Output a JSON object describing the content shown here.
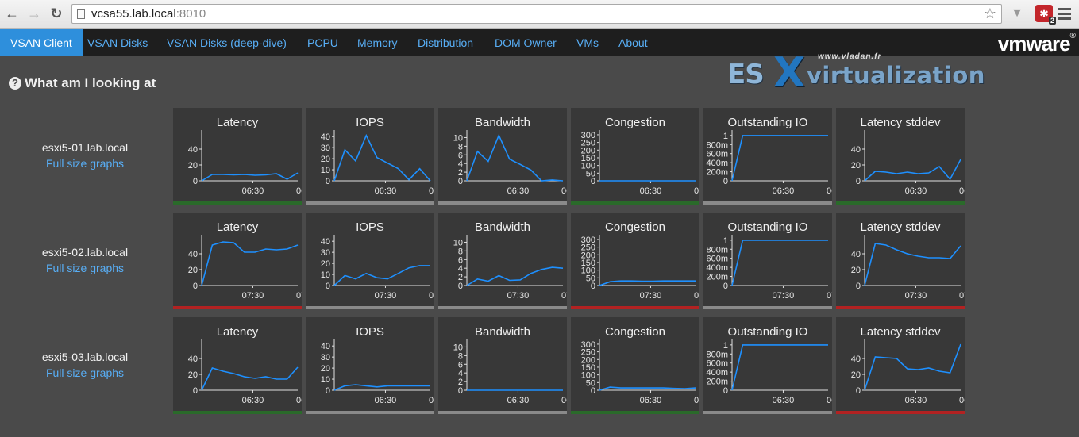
{
  "browser": {
    "url_host": "vcsa55.lab.local",
    "url_port": ":8010",
    "extension_badge": "2"
  },
  "nav": {
    "items": [
      {
        "label": "VSAN Client",
        "active": true
      },
      {
        "label": "VSAN Disks"
      },
      {
        "label": "VSAN Disks (deep-dive)"
      },
      {
        "label": "PCPU"
      },
      {
        "label": "Memory"
      },
      {
        "label": "Distribution"
      },
      {
        "label": "DOM Owner"
      },
      {
        "label": "VMs"
      },
      {
        "label": "About"
      }
    ],
    "logo": "vmware"
  },
  "help": {
    "label": "What am I looking at"
  },
  "watermark": {
    "url": "www.vladan.fr",
    "es": "ES",
    "x": "X",
    "virt": "virtualization"
  },
  "colors": {
    "green": "#2a6a2a",
    "gray": "#8a8a8a",
    "red": "#b22222",
    "line": "#1e90ff"
  },
  "hosts": [
    {
      "name": "esxi5-01.lab.local",
      "link": "Full size graphs",
      "time_label": "06:30",
      "graphs": [
        {
          "title": "Latency",
          "ticks": [
            "0",
            "20",
            "40"
          ],
          "ymax": 60,
          "status": "green",
          "values": [
            0,
            8,
            8,
            7.5,
            8,
            7,
            7.5,
            9,
            2,
            10
          ]
        },
        {
          "title": "IOPS",
          "ticks": [
            "0",
            "10",
            "20",
            "30",
            "40"
          ],
          "ymax": 43,
          "status": "gray",
          "values": [
            0,
            28,
            18,
            41,
            21,
            16,
            11,
            1,
            11,
            0
          ]
        },
        {
          "title": "Bandwidth",
          "ticks": [
            "0",
            "2",
            "4",
            "6",
            "8",
            "10"
          ],
          "ymax": 11,
          "status": "gray",
          "values": [
            0,
            6.8,
            4.5,
            10.5,
            5,
            3.8,
            2.5,
            0,
            0.2,
            0
          ]
        },
        {
          "title": "Congestion",
          "ticks": [
            "0",
            "50",
            "100",
            "150",
            "200",
            "250",
            "300"
          ],
          "ymax": 310,
          "status": "green",
          "values": [
            0,
            0,
            0,
            0,
            0,
            0,
            0,
            0,
            0,
            0
          ]
        },
        {
          "title": "Outstanding IO",
          "ticks": [
            "0",
            "200m",
            "400m",
            "600m",
            "800m",
            "1"
          ],
          "ymax": 1.05,
          "status": "gray",
          "values": [
            0,
            1,
            1,
            1,
            1,
            1,
            1,
            1,
            1,
            1
          ]
        },
        {
          "title": "Latency stddev",
          "ticks": [
            "0",
            "20",
            "40"
          ],
          "ymax": 60,
          "status": "green",
          "values": [
            0,
            12,
            11,
            9,
            11,
            9,
            10,
            18,
            2,
            27
          ]
        }
      ]
    },
    {
      "name": "esxi5-02.lab.local",
      "link": "Full size graphs",
      "time_label": "07:30",
      "graphs": [
        {
          "title": "Latency",
          "ticks": [
            "0",
            "20",
            "40"
          ],
          "ymax": 60,
          "status": "red",
          "values": [
            0,
            51,
            55,
            54,
            42,
            42,
            46,
            45,
            46,
            51
          ]
        },
        {
          "title": "IOPS",
          "ticks": [
            "0",
            "10",
            "20",
            "30",
            "40"
          ],
          "ymax": 43,
          "status": "gray",
          "values": [
            0,
            9,
            6,
            11,
            7,
            6,
            11,
            16,
            18,
            18
          ]
        },
        {
          "title": "Bandwidth",
          "ticks": [
            "0",
            "2",
            "4",
            "6",
            "8",
            "10"
          ],
          "ymax": 11,
          "status": "gray",
          "values": [
            0,
            1.5,
            1,
            2.3,
            1.2,
            1.3,
            2.8,
            3.7,
            4.2,
            4
          ]
        },
        {
          "title": "Congestion",
          "ticks": [
            "0",
            "50",
            "100",
            "150",
            "200",
            "250",
            "300"
          ],
          "ymax": 310,
          "status": "red",
          "values": [
            0,
            25,
            30,
            30,
            28,
            28,
            30,
            30,
            30,
            30
          ]
        },
        {
          "title": "Outstanding IO",
          "ticks": [
            "0",
            "200m",
            "400m",
            "600m",
            "800m",
            "1"
          ],
          "ymax": 1.05,
          "status": "gray",
          "values": [
            0,
            1,
            1,
            1,
            1,
            1,
            1,
            1,
            1,
            1
          ]
        },
        {
          "title": "Latency stddev",
          "ticks": [
            "0",
            "20",
            "40"
          ],
          "ymax": 60,
          "status": "red",
          "values": [
            0,
            53,
            51,
            45,
            40,
            37,
            35,
            35,
            34,
            50
          ]
        }
      ]
    },
    {
      "name": "esxi5-03.lab.local",
      "link": "Full size graphs",
      "time_label": "06:30",
      "graphs": [
        {
          "title": "Latency",
          "ticks": [
            "0",
            "20",
            "40"
          ],
          "ymax": 60,
          "status": "green",
          "values": [
            0,
            28,
            24,
            21,
            17,
            15,
            17,
            14,
            14,
            29
          ]
        },
        {
          "title": "IOPS",
          "ticks": [
            "0",
            "10",
            "20",
            "30",
            "40"
          ],
          "ymax": 43,
          "status": "gray",
          "values": [
            0,
            4,
            5,
            4,
            3,
            4,
            4,
            4,
            4,
            4
          ]
        },
        {
          "title": "Bandwidth",
          "ticks": [
            "0",
            "2",
            "4",
            "6",
            "8",
            "10"
          ],
          "ymax": 11,
          "status": "gray",
          "values": [
            0,
            0,
            0,
            0,
            0,
            0,
            0,
            0,
            0,
            0
          ]
        },
        {
          "title": "Congestion",
          "ticks": [
            "0",
            "50",
            "100",
            "150",
            "200",
            "250",
            "300"
          ],
          "ymax": 310,
          "status": "green",
          "values": [
            0,
            20,
            15,
            15,
            15,
            15,
            15,
            12,
            10,
            15
          ]
        },
        {
          "title": "Outstanding IO",
          "ticks": [
            "0",
            "200m",
            "400m",
            "600m",
            "800m",
            "1"
          ],
          "ymax": 1.05,
          "status": "gray",
          "values": [
            0,
            1,
            1,
            1,
            1,
            1,
            1,
            1,
            1,
            1
          ]
        },
        {
          "title": "Latency stddev",
          "ticks": [
            "0",
            "20",
            "40"
          ],
          "ymax": 60,
          "status": "red",
          "values": [
            0,
            42,
            41,
            40,
            27,
            26,
            28,
            24,
            22,
            58
          ]
        }
      ]
    }
  ]
}
